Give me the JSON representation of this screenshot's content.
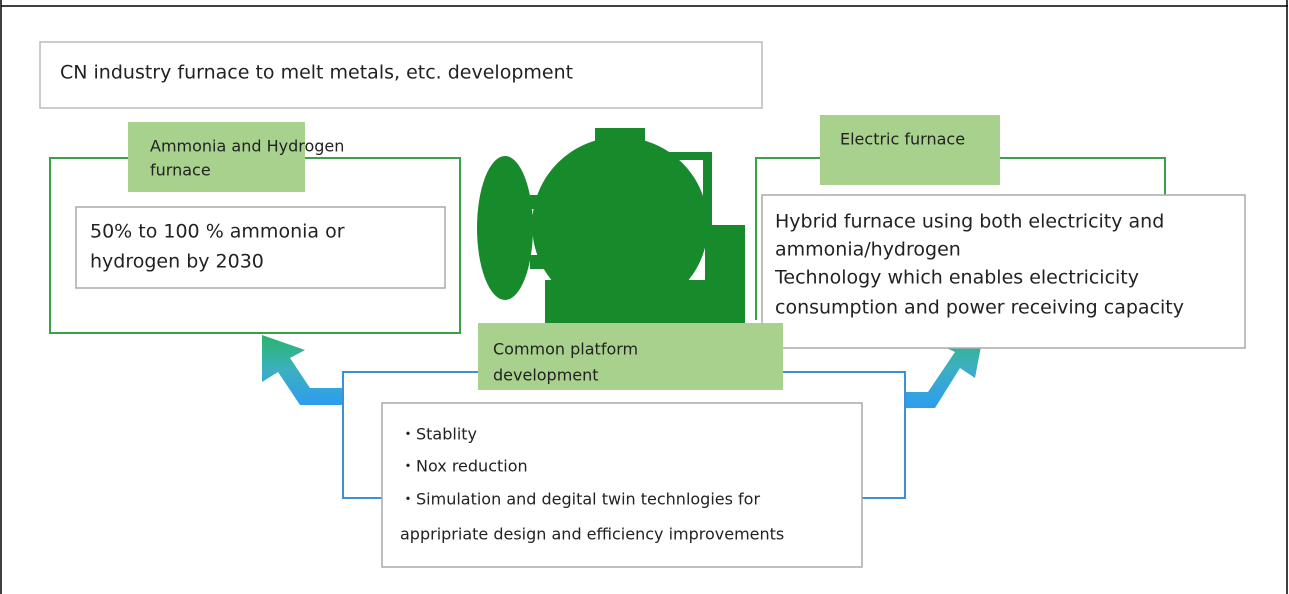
{
  "header": {
    "title": "CN industry furnace to melt metals, etc. development"
  },
  "left_panel": {
    "label": [
      "Ammonia and Hydrogen",
      "furnace"
    ],
    "text": [
      "50% to 100 % ammonia or",
      "hydrogen by 2030"
    ]
  },
  "right_panel": {
    "label": [
      "Electric furnace"
    ],
    "text": [
      "Hybrid furnace using both electricity and",
      "ammonia/hydrogen",
      "Technology which enables electricicity",
      "consumption and power receiving capacity"
    ]
  },
  "center_panel": {
    "label": [
      "Common platform",
      "development"
    ],
    "items": [
      "・Stablity",
      "・Nox reduction",
      "・Simulation and degital twin technlogies for",
      "appripriate design and efficiency improvements"
    ]
  }
}
